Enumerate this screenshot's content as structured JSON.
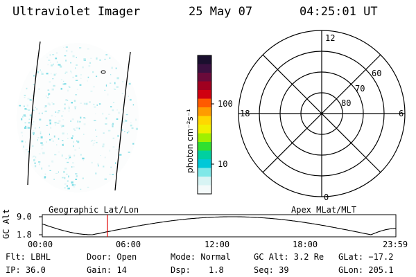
{
  "header": {
    "instrument": "Ultraviolet Imager",
    "date": "25 May 07",
    "time": "04:25:01 UT"
  },
  "colorbar": {
    "label": "photon cm⁻²s⁻¹",
    "ticks": [
      "100",
      "10"
    ],
    "colors": [
      "#1a0f2e",
      "#3a1040",
      "#6a0a3a",
      "#a00020",
      "#d00010",
      "#ff5a00",
      "#ff9c00",
      "#ffd700",
      "#f0f000",
      "#a0f000",
      "#30e030",
      "#00d0a0",
      "#00c8d8",
      "#7fe8e8",
      "#d8f4f4",
      "#f4fafa"
    ]
  },
  "polar": {
    "mlt_labels": [
      "12",
      "18",
      "6",
      "0"
    ],
    "lat_labels": [
      "60",
      "70",
      "80"
    ]
  },
  "timeline": {
    "axis_label": "GC Alt",
    "y_ticks": [
      "9.0",
      "1.8"
    ],
    "left_title": "Geographic Lat/Lon",
    "right_title": "Apex  MLat/MLT",
    "x_ticks": [
      "00:00",
      "06:00",
      "12:00",
      "18:00",
      "23:59"
    ],
    "marker_hour": 4.42
  },
  "info": {
    "filter": "Flt: LBHL",
    "door": "Door: Open",
    "mode": "Mode: Normal",
    "gc_alt": "GC Alt: 3.2 Re",
    "glat": "GLat: −17.2",
    "ip": "IP: 36.0",
    "gain": "Gain: 14",
    "dsp_label": "Dsp:",
    "dsp_value": "1.8",
    "seq": "Seq: 39",
    "glon": "GLon: 205.1"
  }
}
